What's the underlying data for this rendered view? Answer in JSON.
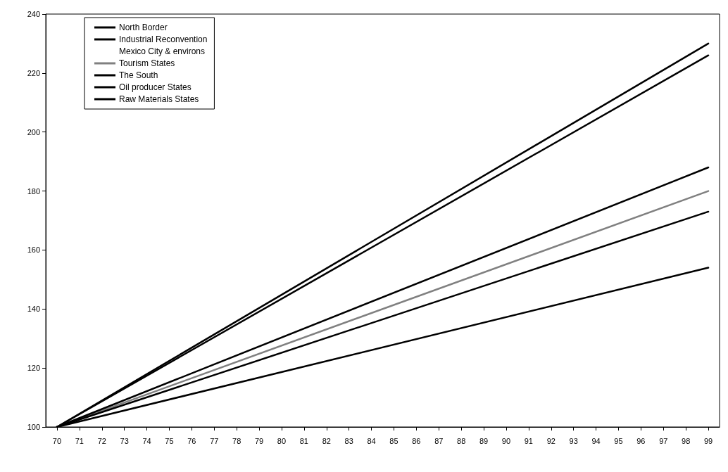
{
  "chart_data": {
    "type": "line",
    "x": [
      70,
      99
    ],
    "xlim": [
      69.5,
      99.5
    ],
    "xticks": [
      70,
      71,
      72,
      73,
      74,
      75,
      76,
      77,
      78,
      79,
      80,
      81,
      82,
      83,
      84,
      85,
      86,
      87,
      88,
      89,
      90,
      91,
      92,
      93,
      94,
      95,
      96,
      97,
      98,
      99
    ],
    "ylim": [
      100,
      240
    ],
    "yticks": [
      100,
      120,
      140,
      160,
      180,
      200,
      220,
      240
    ],
    "grid": false,
    "legend": "top left",
    "marker": "none",
    "line_style": "solid",
    "series": [
      {
        "name": "North Border",
        "color": "#000000",
        "values": [
          100,
          230
        ]
      },
      {
        "name": "Industrial Reconvention",
        "color": "#000000",
        "values": [
          100,
          226
        ]
      },
      {
        "name": "Mexico City & environs",
        "values": [
          null,
          null
        ]
      },
      {
        "name": "Tourism States",
        "color": "#808080",
        "values": [
          100,
          180
        ]
      },
      {
        "name": "The South",
        "color": "#000000",
        "values": [
          100,
          188
        ]
      },
      {
        "name": "Oil producer States",
        "color": "#000000",
        "values": [
          100,
          173
        ]
      },
      {
        "name": "Raw Materials States",
        "color": "#000000",
        "values": [
          100,
          154
        ]
      }
    ]
  }
}
